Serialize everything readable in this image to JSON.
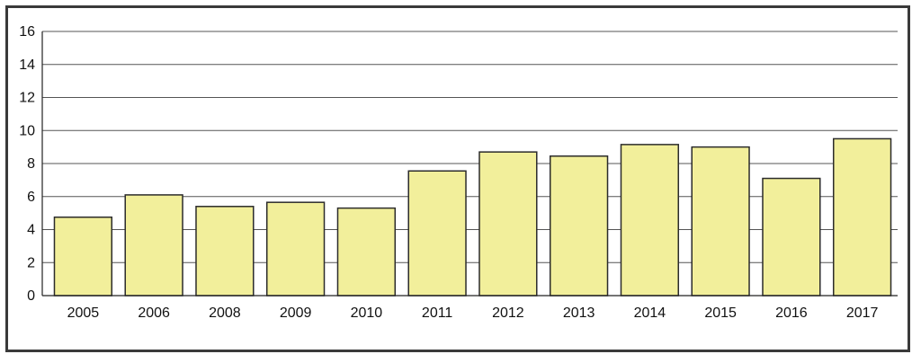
{
  "chart_data": {
    "type": "bar",
    "title": "",
    "xlabel": "",
    "ylabel": "",
    "categories": [
      "2005",
      "2006",
      "2008",
      "2009",
      "2010",
      "2011",
      "2012",
      "2013",
      "2014",
      "2015",
      "2016",
      "2017"
    ],
    "values": [
      4.75,
      6.1,
      5.4,
      5.65,
      5.3,
      7.55,
      8.7,
      8.45,
      9.15,
      9.0,
      7.1,
      9.5
    ],
    "ylim": [
      0,
      16
    ],
    "yticks": [
      "0",
      "2",
      "4",
      "6",
      "8",
      "10",
      "12",
      "14",
      "16"
    ],
    "grid": true,
    "legend": "none",
    "colors": {
      "bar_fill": "#f2ef9b",
      "bar_stroke": "#2b2b2b",
      "grid": "#555555",
      "frame": "#3a3a3a"
    }
  }
}
